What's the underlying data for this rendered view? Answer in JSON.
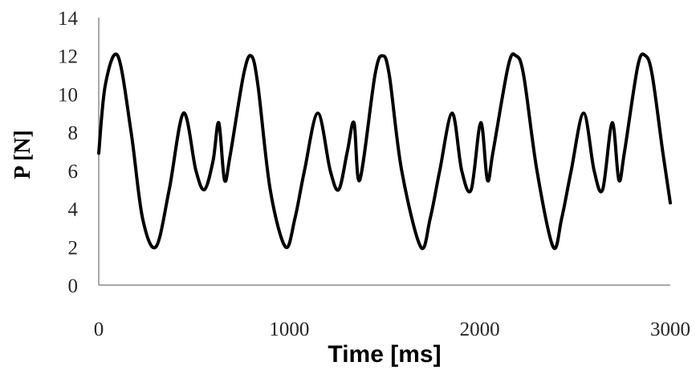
{
  "chart_data": {
    "type": "line",
    "title": "",
    "xlabel": "Time [ms]",
    "ylabel": "P [N]",
    "xlim": [
      0,
      3000
    ],
    "ylim": [
      0,
      14
    ],
    "x_ticks": [
      "0",
      "1000",
      "2000",
      "3000"
    ],
    "y_ticks": [
      "0",
      "2",
      "4",
      "6",
      "8",
      "10",
      "12",
      "14"
    ],
    "grid": false,
    "legend": "none",
    "line_color": "#000000",
    "axis_color": "#8c8c8c",
    "series": [
      {
        "x": [
          0,
          35,
          100,
          170,
          230,
          300,
          370,
          445,
          510,
          555,
          600,
          630,
          660,
          690,
          760,
          800,
          835,
          900,
          980,
          1030,
          1080,
          1150,
          1215,
          1260,
          1305,
          1340,
          1370,
          1450,
          1490,
          1525,
          1590,
          1690,
          1740,
          1790,
          1855,
          1905,
          1955,
          2005,
          2040,
          2070,
          2150,
          2190,
          2230,
          2300,
          2385,
          2430,
          2480,
          2545,
          2600,
          2645,
          2695,
          2730,
          2760,
          2830,
          2870,
          2905,
          2960,
          3000
        ],
        "y": [
          6.9,
          10.5,
          12.0,
          8.0,
          3.5,
          2.0,
          5.0,
          9.0,
          6.0,
          5.0,
          6.5,
          8.5,
          5.5,
          6.8,
          11.0,
          12.0,
          10.5,
          5.0,
          2.0,
          3.5,
          6.0,
          9.0,
          6.0,
          5.0,
          7.0,
          8.5,
          5.5,
          11.0,
          12.0,
          11.0,
          6.0,
          2.0,
          3.5,
          6.0,
          9.0,
          6.0,
          5.0,
          8.5,
          5.5,
          7.0,
          11.5,
          12.0,
          11.0,
          6.0,
          2.0,
          3.5,
          6.0,
          9.0,
          6.0,
          5.0,
          8.5,
          5.5,
          7.0,
          11.5,
          12.0,
          11.0,
          7.0,
          4.3
        ]
      }
    ]
  }
}
